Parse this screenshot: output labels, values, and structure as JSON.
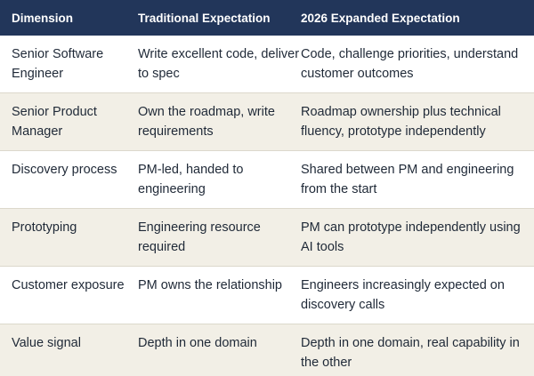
{
  "table": {
    "headers": [
      "Dimension",
      "Traditional Expectation",
      "2026 Expanded Expectation"
    ],
    "rows": [
      [
        "Senior Software Engineer",
        "Write excellent code, deliver to spec",
        "Code, challenge priorities, understand customer outcomes"
      ],
      [
        "Senior Product Manager",
        "Own the roadmap, write requirements",
        "Roadmap ownership plus technical fluency, prototype independently"
      ],
      [
        "Discovery process",
        "PM-led, handed to engineering",
        "Shared between PM and engineering from the start"
      ],
      [
        "Prototyping",
        "Engineering resource required",
        "PM can prototype independently using AI tools"
      ],
      [
        "Customer exposure",
        "PM owns the relationship",
        "Engineers increasingly expected on discovery calls"
      ],
      [
        "Value signal",
        "Depth in one domain",
        "Depth in one domain, real capability in the other"
      ]
    ]
  },
  "colors": {
    "header_bg": "#22365a",
    "header_text": "#ffffff",
    "row_alt_bg": "#f2efe6",
    "row_bg": "#ffffff",
    "body_text": "#1f2937"
  }
}
